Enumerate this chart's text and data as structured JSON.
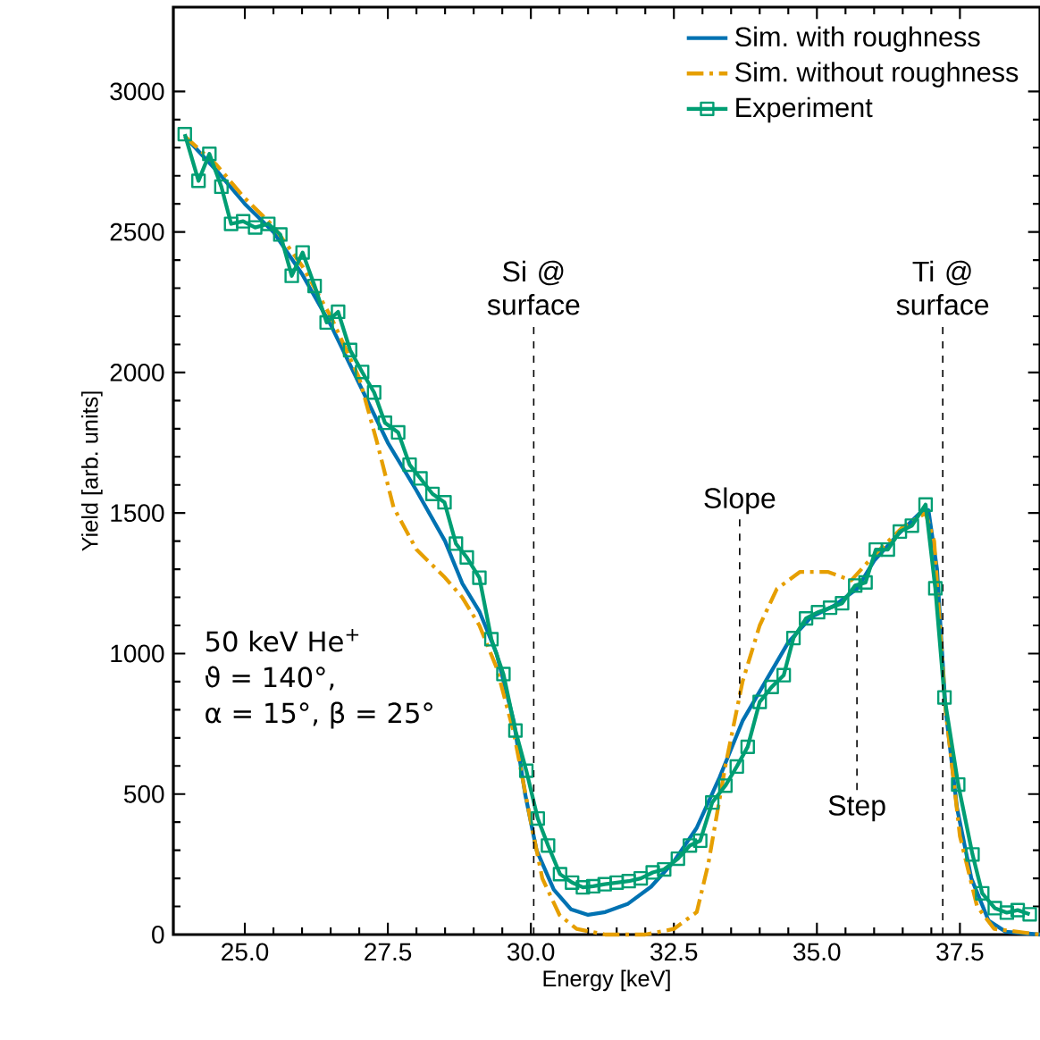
{
  "chart_data": {
    "type": "line",
    "xlabel": "Energy [keV]",
    "ylabel": "Yield [arb. units]",
    "xlim": [
      23.75,
      38.9
    ],
    "ylim": [
      0,
      3300
    ],
    "xticks": [
      {
        "value": 25,
        "label": "25.0"
      },
      {
        "value": 27.5,
        "label": "27.5"
      },
      {
        "value": 30,
        "label": "30.0"
      },
      {
        "value": 32.5,
        "label": "32.5"
      },
      {
        "value": 35,
        "label": "35.0"
      },
      {
        "value": 37.5,
        "label": "37.5"
      }
    ],
    "yticks": [
      0,
      500,
      1000,
      1500,
      2000,
      2500,
      3000
    ],
    "legend": "top right",
    "grid": false,
    "series": [
      {
        "name": "Sim. with roughness",
        "color": "#0072b2",
        "line_style": "solid",
        "x": [
          23.95,
          24.5,
          25,
          25.5,
          26,
          26.5,
          27,
          27.5,
          28,
          28.5,
          28.8,
          29.1,
          29.4,
          29.7,
          29.9,
          30.1,
          30.4,
          30.7,
          31,
          31.3,
          31.7,
          32.1,
          32.5,
          32.9,
          33.3,
          33.7,
          34.1,
          34.5,
          34.9,
          35.3,
          35.7,
          36.0,
          36.4,
          36.8,
          36.95,
          37.1,
          37.25,
          37.45,
          37.7,
          38.0,
          38.3,
          38.9
        ],
        "values": [
          2840,
          2720,
          2600,
          2500,
          2350,
          2170,
          1960,
          1750,
          1580,
          1400,
          1250,
          1150,
          1000,
          760,
          500,
          300,
          160,
          90,
          70,
          80,
          110,
          170,
          260,
          380,
          560,
          760,
          900,
          1040,
          1130,
          1170,
          1230,
          1330,
          1420,
          1500,
          1510,
          1300,
          800,
          450,
          200,
          50,
          10,
          0
        ]
      },
      {
        "name": "Sim. without roughness",
        "color": "#e69f00",
        "line_style": "dashdot",
        "x": [
          23.95,
          24.5,
          25,
          25.5,
          26,
          26.5,
          27,
          27.3,
          27.6,
          28,
          28.5,
          28.8,
          29.1,
          29.4,
          29.7,
          30.0,
          30.2,
          30.5,
          30.8,
          31.3,
          32,
          32.5,
          32.9,
          33.1,
          33.4,
          33.7,
          34.0,
          34.3,
          34.7,
          35.2,
          35.6,
          36.0,
          36.5,
          36.9,
          37.05,
          37.25,
          37.5,
          37.8,
          38.1,
          38.9
        ],
        "values": [
          2840,
          2740,
          2620,
          2520,
          2380,
          2200,
          1980,
          1760,
          1520,
          1370,
          1270,
          1200,
          1100,
          950,
          720,
          400,
          200,
          70,
          20,
          0,
          0,
          20,
          80,
          250,
          600,
          900,
          1100,
          1230,
          1290,
          1290,
          1260,
          1350,
          1450,
          1500,
          1400,
          800,
          350,
          100,
          20,
          0
        ]
      },
      {
        "name": "Experiment",
        "color": "#009e73",
        "line_style": "solid",
        "marker": "square",
        "x": [
          23.95,
          24.19,
          24.38,
          24.59,
          24.76,
          24.97,
          25.18,
          25.41,
          25.62,
          25.82,
          26.01,
          26.22,
          26.43,
          26.63,
          26.84,
          27.05,
          27.26,
          27.45,
          27.68,
          27.88,
          28.07,
          28.28,
          28.49,
          28.69,
          28.88,
          29.1,
          29.31,
          29.52,
          29.73,
          29.92,
          30.12,
          30.3,
          30.51,
          30.72,
          30.91,
          31.09,
          31.29,
          31.5,
          31.71,
          31.92,
          32.13,
          32.33,
          32.57,
          32.78,
          32.96,
          33.17,
          33.4,
          33.6,
          33.79,
          34.0,
          34.21,
          34.42,
          34.59,
          34.81,
          35.02,
          35.23,
          35.44,
          35.67,
          35.85,
          36.03,
          36.24,
          36.45,
          36.66,
          36.9,
          37.07,
          37.23,
          37.47,
          37.72,
          37.89,
          38.11,
          38.32,
          38.51,
          38.72
        ],
        "values": [
          2848,
          2682,
          2778,
          2661,
          2529,
          2538,
          2516,
          2529,
          2491,
          2344,
          2427,
          2308,
          2178,
          2216,
          2080,
          2002,
          1929,
          1821,
          1787,
          1672,
          1623,
          1568,
          1538,
          1391,
          1342,
          1270,
          1051,
          927,
          726,
          583,
          413,
          317,
          215,
          185,
          168,
          172,
          179,
          185,
          190,
          200,
          221,
          232,
          270,
          317,
          334,
          470,
          530,
          598,
          668,
          828,
          881,
          923,
          1055,
          1125,
          1147,
          1163,
          1179,
          1242,
          1253,
          1370,
          1370,
          1434,
          1455,
          1530,
          1232,
          844,
          534,
          285,
          147,
          94,
          78,
          87,
          72
        ]
      }
    ],
    "ref_lines": [
      {
        "axis": "x",
        "value": 30.05,
        "label": "Si @ surface",
        "line_style": "dashed"
      },
      {
        "axis": "x",
        "value": 37.2,
        "label": "Ti @ surface",
        "line_style": "dashed"
      }
    ],
    "annotations": [
      {
        "text": "Slope",
        "x": 33.65,
        "y": 842
      },
      {
        "text": "Step",
        "x": 35.7,
        "y": 1150
      },
      "50 keV He$^{+}$",
      "ϑ = 140°,",
      "α = 15°, β = 25°"
    ]
  }
}
